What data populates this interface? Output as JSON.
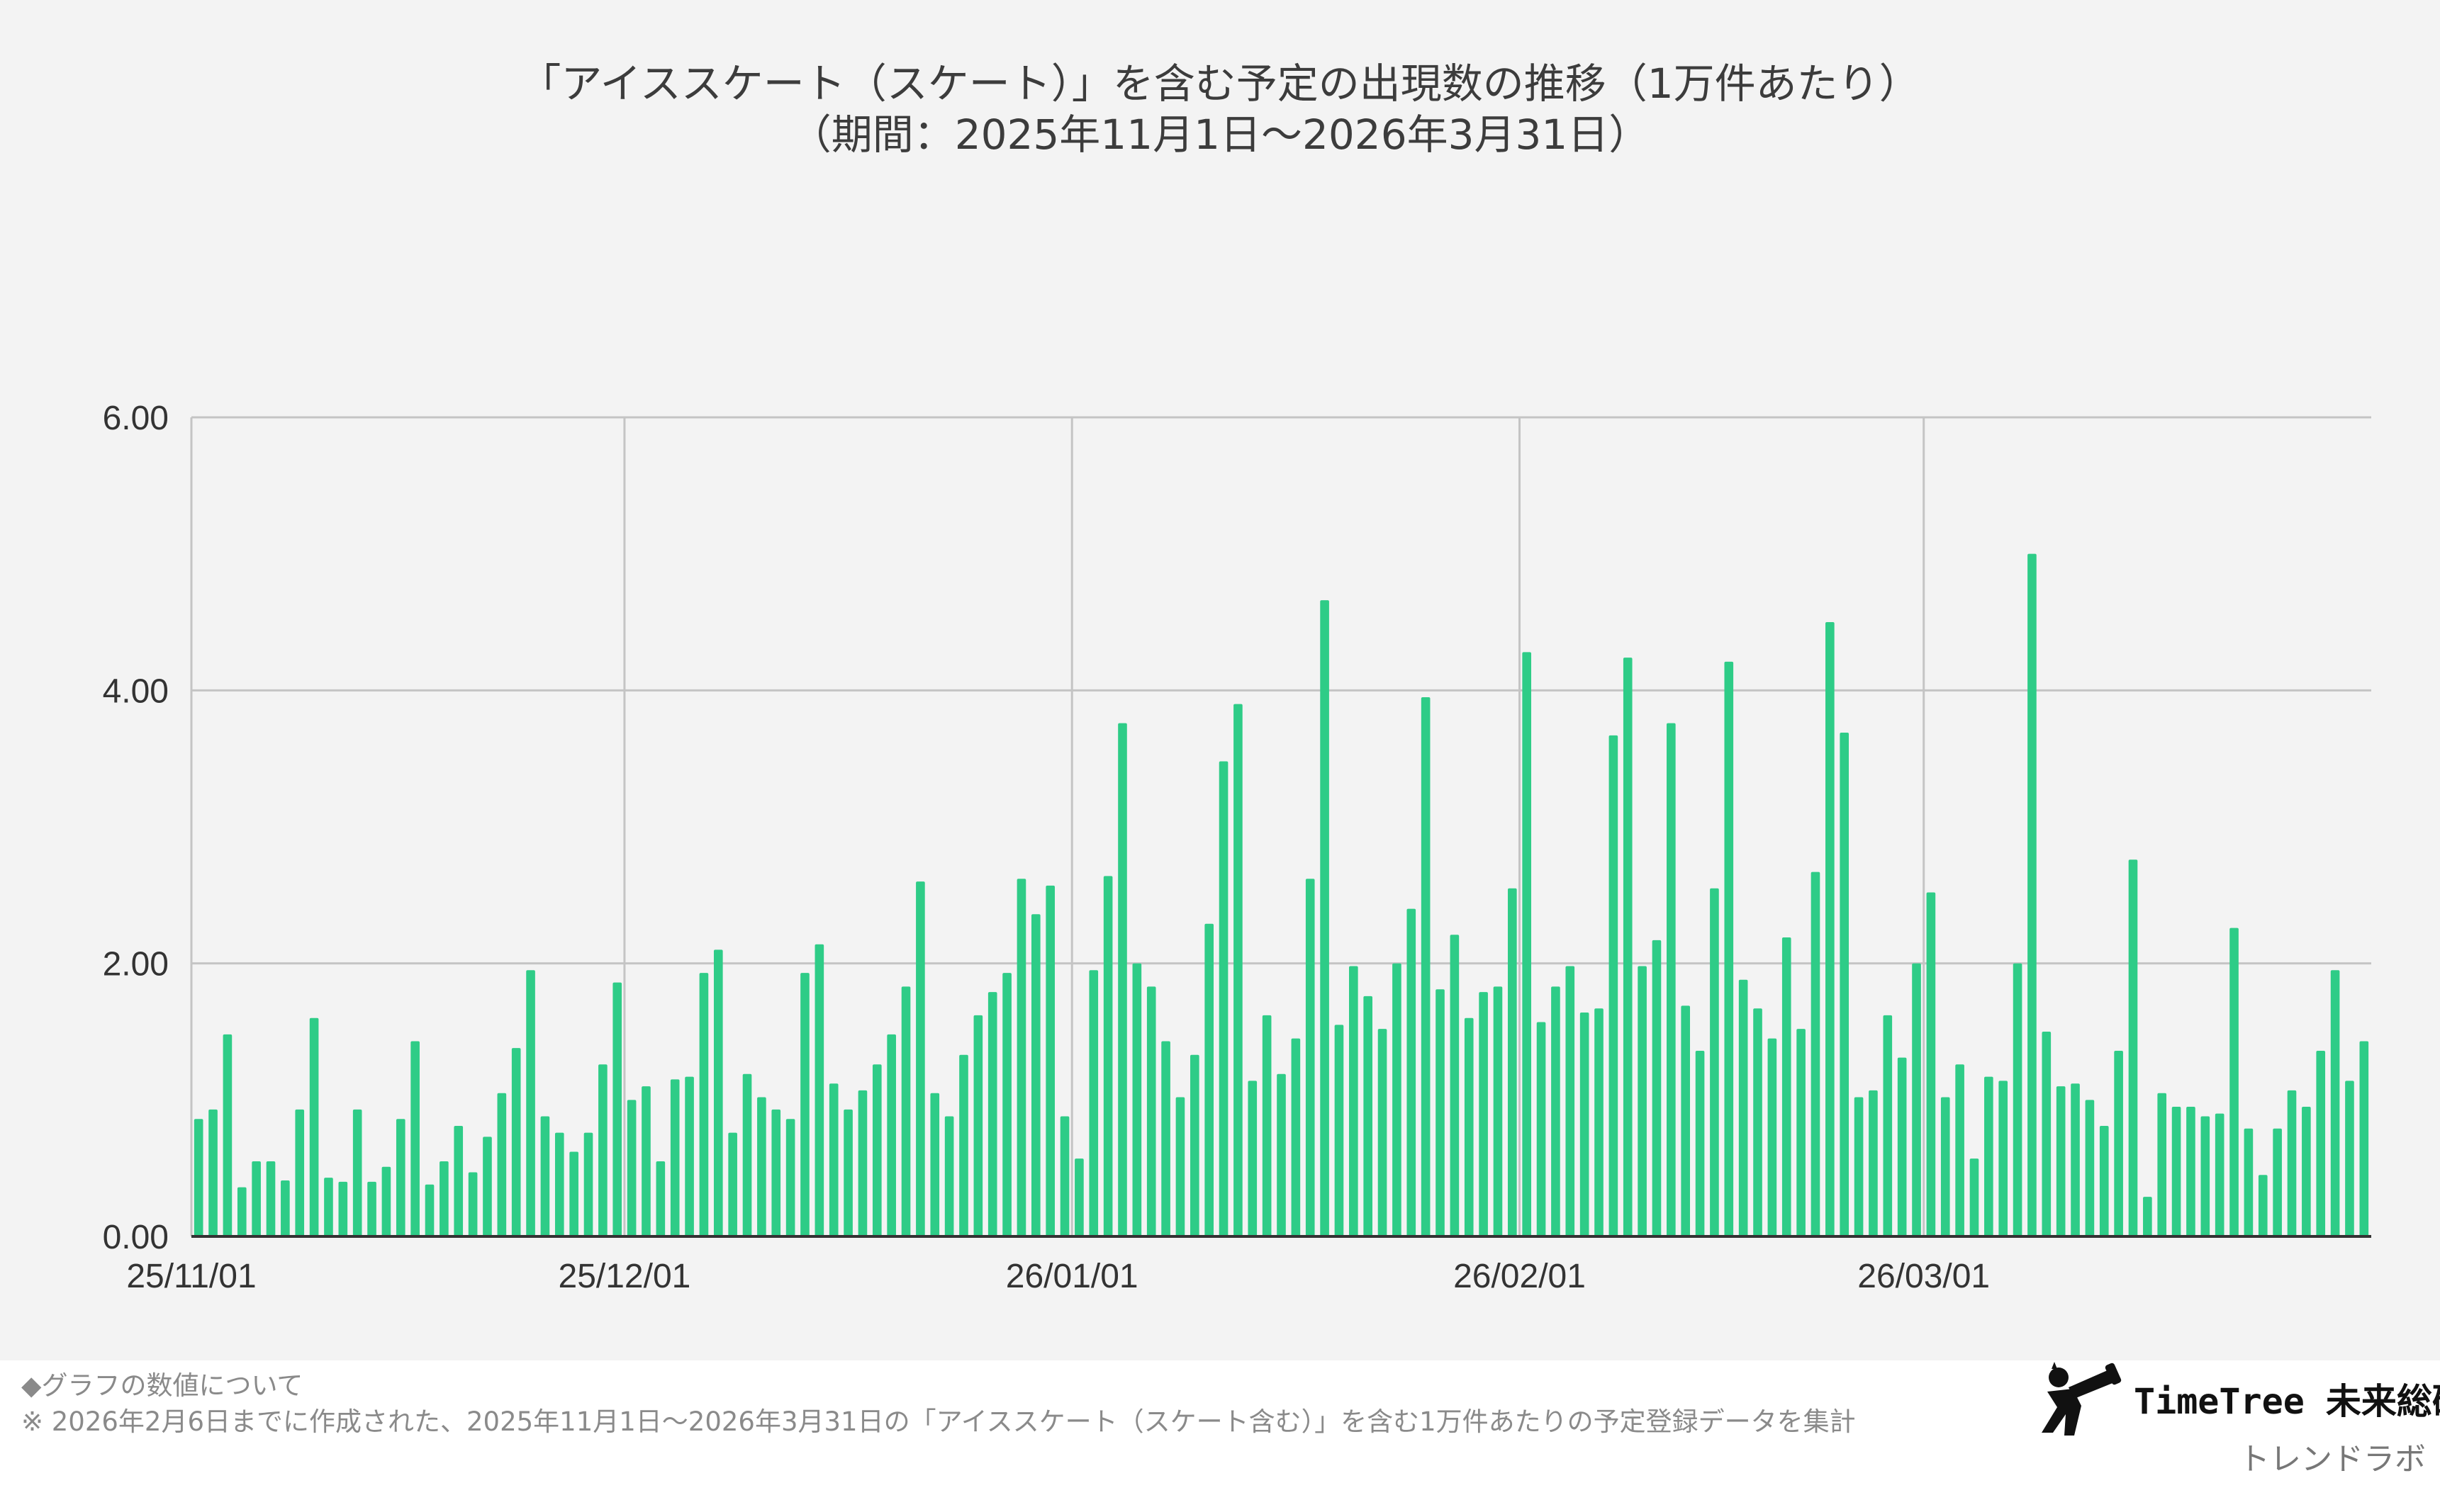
{
  "chart_data": {
    "type": "bar",
    "title": "「アイススケート（スケート）」を含む予定の出現数の推移（1万件あたり）",
    "subtitle": "（期間：2025年11月1日〜2026年3月31日）",
    "xlabel": "",
    "ylabel": "",
    "ylim": [
      0,
      6
    ],
    "yticks": [
      "0.00",
      "2.00",
      "4.00",
      "6.00"
    ],
    "ytick_values": [
      0,
      2,
      4,
      6
    ],
    "xticks": [
      {
        "label": "25/11/01",
        "index": 0
      },
      {
        "label": "25/12/01",
        "index": 30
      },
      {
        "label": "26/01/01",
        "index": 61
      },
      {
        "label": "26/02/01",
        "index": 92
      },
      {
        "label": "26/03/01",
        "index": 120
      }
    ],
    "grid": true,
    "bar_color": "#2ecc87",
    "start_date": "2025-11-01",
    "end_date": "2026-03-31",
    "values": [
      0.86,
      0.93,
      1.48,
      0.36,
      0.55,
      0.55,
      0.41,
      0.93,
      1.6,
      0.43,
      0.4,
      0.93,
      0.4,
      0.51,
      0.86,
      1.43,
      0.38,
      0.55,
      0.81,
      0.47,
      0.73,
      1.05,
      1.38,
      1.95,
      0.88,
      0.76,
      0.62,
      0.76,
      1.26,
      1.86,
      1.0,
      1.1,
      0.55,
      1.15,
      1.17,
      1.93,
      2.1,
      0.76,
      1.19,
      1.02,
      0.93,
      0.86,
      1.93,
      2.14,
      1.12,
      0.93,
      1.07,
      1.26,
      1.48,
      1.83,
      2.6,
      1.05,
      0.88,
      1.33,
      1.62,
      1.79,
      1.93,
      2.62,
      2.36,
      2.57,
      0.88,
      0.57,
      1.95,
      2.64,
      3.76,
      2.0,
      1.83,
      1.43,
      1.02,
      1.33,
      2.29,
      3.48,
      3.9,
      1.14,
      1.62,
      1.19,
      1.45,
      2.62,
      4.66,
      1.55,
      1.98,
      1.76,
      1.52,
      2.0,
      2.4,
      3.95,
      1.81,
      2.21,
      1.6,
      1.79,
      1.83,
      2.55,
      4.28,
      1.57,
      1.83,
      1.98,
      1.64,
      1.67,
      3.67,
      4.24,
      1.98,
      2.17,
      3.76,
      1.69,
      1.36,
      2.55,
      4.21,
      1.88,
      1.67,
      1.45,
      2.19,
      1.52,
      2.67,
      4.5,
      3.69,
      1.02,
      1.07,
      1.62,
      1.31,
      2.0,
      2.52,
      1.02,
      1.26,
      0.57,
      1.17,
      1.14,
      2.0,
      5.0,
      1.5,
      1.1,
      1.12,
      1.0,
      0.81,
      1.36,
      2.76,
      0.29,
      1.05,
      0.95,
      0.95,
      0.88,
      0.9,
      2.26,
      0.79,
      0.45,
      0.79,
      1.07,
      0.95,
      1.36,
      1.95,
      1.14,
      1.43
    ]
  },
  "footer": {
    "heading": "◆グラフの数値について",
    "note": "※ 2026年2月6日までに作成された、2025年11月1日〜2026年3月31日の「アイススケート（スケート含む）」を含む1万件あたりの予定登録データを集計"
  },
  "brand": {
    "name": "TimeTree 未来総研",
    "sub": "トレンドラボ",
    "logo_icon": "telescope-person-icon"
  }
}
